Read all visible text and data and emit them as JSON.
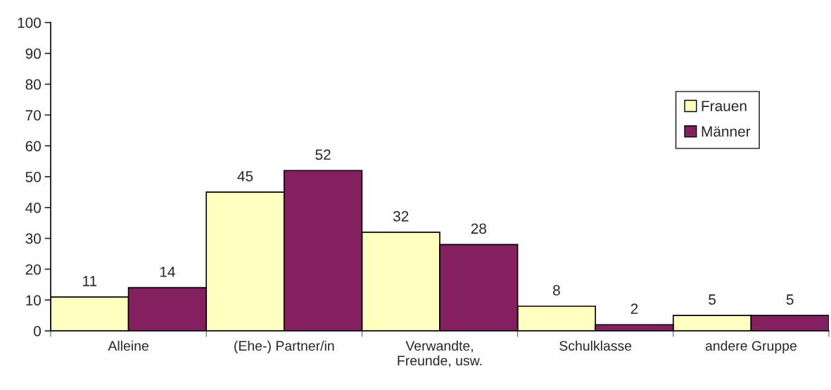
{
  "chart_data": {
    "type": "bar",
    "categories": [
      "Alleine",
      "(Ehe-) Partner/in",
      "Verwandte,\nFreunde, usw.",
      "Schulklasse",
      "andere Gruppe"
    ],
    "series": [
      {
        "name": "Frauen",
        "color": "#ffffc0",
        "values": [
          11,
          45,
          32,
          8,
          5
        ]
      },
      {
        "name": "Männer",
        "color": "#842060",
        "values": [
          14,
          52,
          28,
          2,
          5
        ]
      }
    ],
    "ylim": [
      0,
      100
    ],
    "yticks": [
      0,
      10,
      20,
      30,
      40,
      50,
      60,
      70,
      80,
      90,
      100
    ],
    "data_labels": true,
    "legend": "top right",
    "grid": false
  }
}
